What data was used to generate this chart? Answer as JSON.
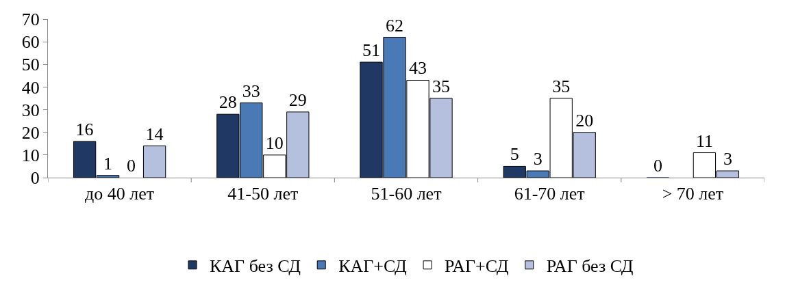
{
  "chart_data": {
    "type": "bar",
    "categories": [
      "до 40 лет",
      "41-50 лет",
      "51-60 лет",
      "61-70 лет",
      "> 70 лет"
    ],
    "series": [
      {
        "name": "КАГ без СД",
        "color": "#1f3864",
        "values": [
          16,
          28,
          51,
          5,
          0
        ]
      },
      {
        "name": "КАГ+СД",
        "color": "#4a7ab5",
        "values": [
          1,
          33,
          62,
          3,
          null
        ]
      },
      {
        "name": "РАГ+СД",
        "color": "#ffffff",
        "values": [
          0,
          10,
          43,
          35,
          11
        ]
      },
      {
        "name": "РАГ без СД",
        "color": "#b4c0de",
        "values": [
          14,
          29,
          35,
          20,
          3
        ]
      }
    ],
    "ylim": [
      0,
      70
    ],
    "yticks": [
      0,
      10,
      20,
      30,
      40,
      50,
      60,
      70
    ],
    "data_labels": true,
    "legend": "bottom"
  }
}
